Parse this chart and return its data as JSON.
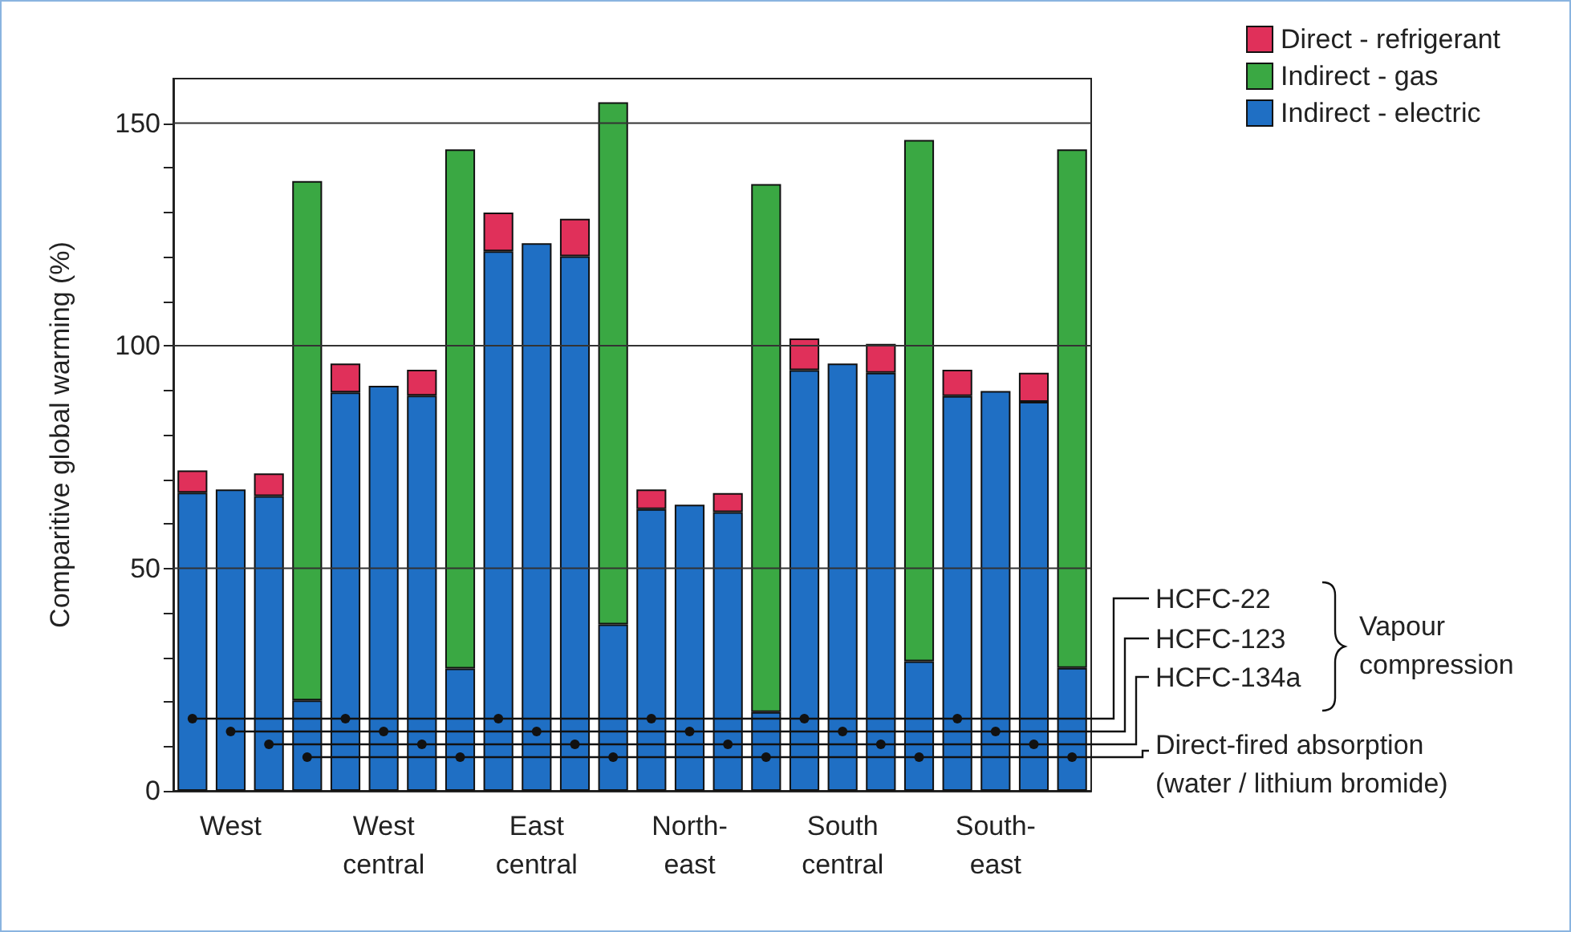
{
  "chart_data": {
    "type": "bar",
    "stacked": true,
    "ylabel": "Comparitive global warming (%)",
    "categories": [
      null,
      "West",
      null,
      null,
      null,
      "West\ncentral",
      null,
      null,
      null,
      "East\ncentral",
      null,
      null,
      null,
      "North-\neast",
      null,
      null,
      null,
      "South\ncentral",
      null,
      null,
      null,
      "South-\neast",
      null,
      null
    ],
    "series": [
      {
        "name": "Indirect - electric",
        "color": "#1f6fc4",
        "values": [
          67.0,
          67.7,
          66.2,
          20.3,
          89.5,
          91.0,
          88.8,
          27.5,
          121.2,
          123.0,
          120.1,
          37.4,
          63.3,
          64.3,
          62.6,
          17.7,
          94.5,
          96.0,
          93.9,
          29.1,
          88.7,
          89.8,
          87.4,
          27.6
        ]
      },
      {
        "name": "Indirect - gas",
        "color": "#3aa843",
        "values": [
          null,
          null,
          null,
          116.7,
          null,
          null,
          null,
          116.6,
          null,
          null,
          null,
          117.3,
          null,
          null,
          null,
          118.6,
          null,
          null,
          null,
          117.1,
          null,
          null,
          null,
          116.5
        ]
      },
      {
        "name": "Direct - refrigerant",
        "color": "#e0305a",
        "values": [
          5.0,
          null,
          5.1,
          null,
          6.5,
          null,
          5.8,
          null,
          8.7,
          null,
          8.4,
          null,
          4.4,
          null,
          4.3,
          null,
          7.1,
          null,
          6.5,
          null,
          5.9,
          null,
          6.5,
          null
        ]
      }
    ],
    "ylim": [
      0,
      160
    ],
    "yticks": [
      0,
      {
        "value": 10,
        "label": null
      },
      {
        "value": 20,
        "label": null
      },
      {
        "value": 30,
        "label": null
      },
      {
        "value": 40,
        "label": null
      },
      50,
      {
        "value": 60,
        "label": null
      },
      {
        "value": 70,
        "label": null
      },
      {
        "value": 80,
        "label": null
      },
      {
        "value": 90,
        "label": null
      },
      100,
      {
        "value": 110,
        "label": null
      },
      {
        "value": 120,
        "label": null
      },
      {
        "value": 130,
        "label": null
      },
      {
        "value": 140,
        "label": null
      },
      150
    ],
    "grid": "y",
    "legend": "top right",
    "annotations": [
      "HCFC-22",
      "HCFC-123",
      "HCFC-134a",
      "Vapour compression",
      "Direct-fired absorption (water / lithium bromide)"
    ]
  }
}
